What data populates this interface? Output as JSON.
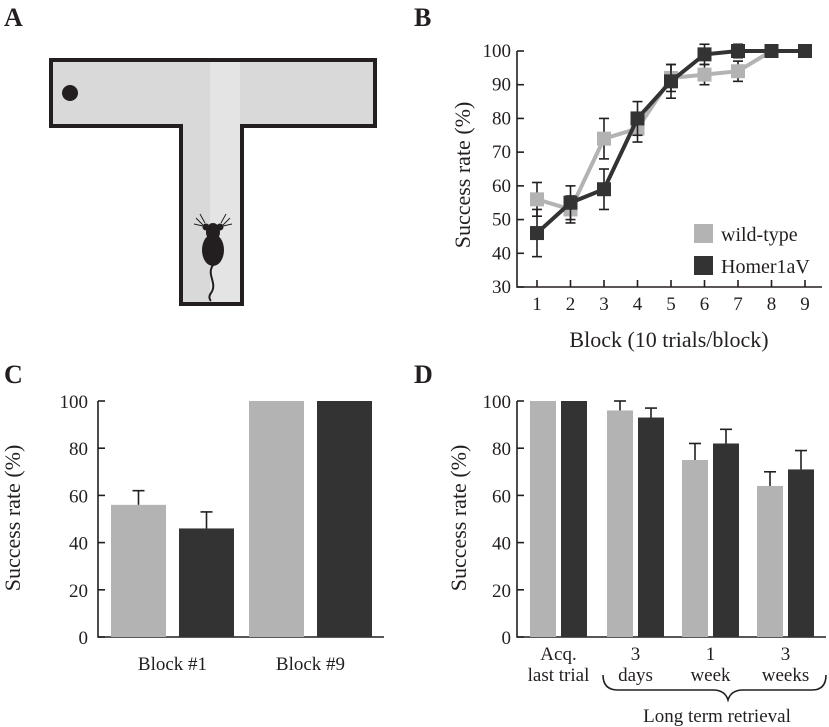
{
  "panel_labels": {
    "a": "A",
    "b": "B",
    "c": "C",
    "d": "D"
  },
  "colors": {
    "wild_type": "#b3b3b3",
    "homer": "#333333",
    "maze_fill": "#d9d9d9",
    "maze_border": "#231f20",
    "axis": "#231f20"
  },
  "maze": {
    "icon": "t-maze-with-mouse-icon"
  },
  "chart_data": [
    {
      "panel": "B",
      "type": "line",
      "xlabel": "Block (10 trials/block)",
      "ylabel": "Success rate (%)",
      "x": [
        1,
        2,
        3,
        4,
        5,
        6,
        7,
        8,
        9
      ],
      "x_tick_labels": [
        "1",
        "2",
        "3",
        "4",
        "5",
        "6",
        "7",
        "8",
        "9"
      ],
      "ylim": [
        30,
        100
      ],
      "y_ticks": [
        30,
        40,
        50,
        60,
        70,
        80,
        90,
        100
      ],
      "legend": {
        "position": "bottom-right",
        "entries": [
          "wild-type",
          "Homer1aV"
        ]
      },
      "series": [
        {
          "name": "wild-type",
          "values": [
            56,
            53,
            74,
            77,
            92,
            93,
            94,
            100,
            100
          ],
          "errors": [
            5,
            4,
            6,
            4,
            4,
            3,
            3,
            0,
            0
          ]
        },
        {
          "name": "Homer1aV",
          "values": [
            46,
            55,
            59,
            80,
            91,
            99,
            100,
            100,
            100
          ],
          "errors": [
            7,
            5,
            6,
            5,
            5,
            3,
            2,
            0,
            0
          ]
        }
      ]
    },
    {
      "panel": "C",
      "type": "bar",
      "ylabel": "Success rate (%)",
      "categories": [
        "Block #1",
        "Block #9"
      ],
      "ylim": [
        0,
        100
      ],
      "y_ticks": [
        0,
        20,
        40,
        60,
        80,
        100
      ],
      "series": [
        {
          "name": "wild-type",
          "values": [
            56,
            100
          ],
          "errors": [
            6,
            0
          ]
        },
        {
          "name": "Homer1aV",
          "values": [
            46,
            100
          ],
          "errors": [
            7,
            0
          ]
        }
      ]
    },
    {
      "panel": "D",
      "type": "bar",
      "ylabel": "Success rate (%)",
      "categories": [
        {
          "line1": "Acq.",
          "line2": "last trial"
        },
        {
          "line1": "3",
          "line2": "days"
        },
        {
          "line1": "1",
          "line2": "week"
        },
        {
          "line1": "3",
          "line2": "weeks"
        }
      ],
      "group_label": "Long term retrieval",
      "ylim": [
        0,
        100
      ],
      "y_ticks": [
        0,
        20,
        40,
        60,
        80,
        100
      ],
      "series": [
        {
          "name": "wild-type",
          "values": [
            100,
            96,
            75,
            64
          ],
          "errors": [
            0,
            4,
            7,
            6
          ]
        },
        {
          "name": "Homer1aV",
          "values": [
            100,
            93,
            82,
            71
          ],
          "errors": [
            0,
            4,
            6,
            8
          ]
        }
      ]
    }
  ]
}
